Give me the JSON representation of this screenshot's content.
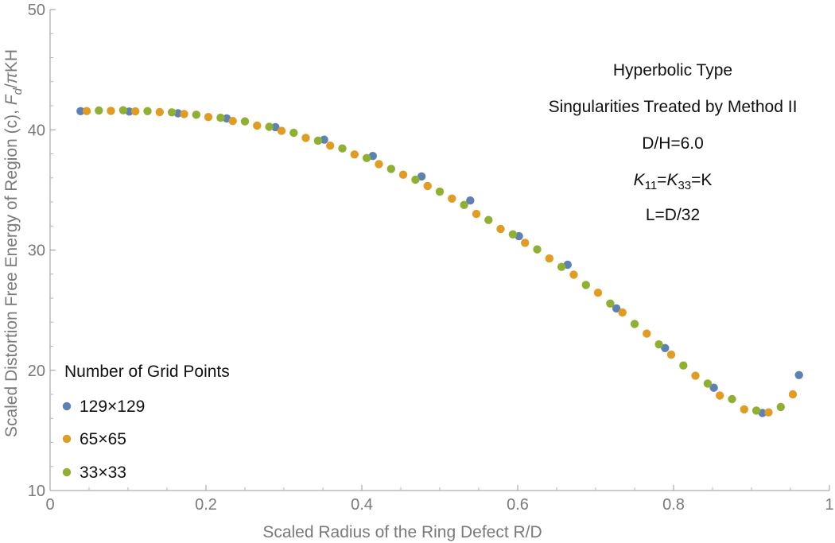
{
  "chart_data": {
    "type": "scatter",
    "title": "",
    "xlabel": "Scaled Radius of the Ring Defect R/D",
    "ylabel_parts": {
      "main": "Scaled Distortion Free Energy of Region (c), ",
      "F": "F",
      "sub_d": "d",
      "slash": "/",
      "pi": "π",
      "tail": "KH"
    },
    "xlim": [
      0,
      1
    ],
    "ylim": [
      10,
      50
    ],
    "xticks": [
      "0",
      "0.2",
      "0.4",
      "0.6",
      "0.8",
      "1"
    ],
    "xtick_values": [
      0,
      0.2,
      0.4,
      0.6,
      0.8,
      1
    ],
    "yticks": [
      "10",
      "20",
      "30",
      "40",
      "50"
    ],
    "ytick_values": [
      10,
      20,
      30,
      40,
      50
    ],
    "annotations": {
      "line1": "Hyperbolic Type",
      "line2": "Singularities Treated by Method II",
      "line3": "D/H=6.0",
      "k_a": "K",
      "k_a_sub": "11",
      "k_eq": "=",
      "k_b": "K",
      "k_b_sub": "33",
      "k_tail": "=K",
      "line5": "L=D/32"
    },
    "legend": {
      "title": "Number of Grid Points",
      "placement": "bottom-left",
      "entries": [
        "129×129",
        "65×65",
        "33×33"
      ]
    },
    "series": [
      {
        "name": "129×129",
        "color": "#5E81B5",
        "x": [
          0.0391,
          0.1016,
          0.1641,
          0.2266,
          0.2891,
          0.3516,
          0.4141,
          0.4766,
          0.5391,
          0.6016,
          0.6641,
          0.7266,
          0.7891,
          0.8516,
          0.9141,
          0.9609
        ],
        "y": [
          41.55,
          41.52,
          41.38,
          40.95,
          40.22,
          39.18,
          37.82,
          36.12,
          34.12,
          31.15,
          28.78,
          25.15,
          21.85,
          18.55,
          16.45,
          19.6
        ]
      },
      {
        "name": "65×65",
        "color": "#E19C24",
        "x": [
          0.0469,
          0.0781,
          0.1094,
          0.1406,
          0.1719,
          0.2031,
          0.2344,
          0.2656,
          0.2969,
          0.3281,
          0.3594,
          0.3906,
          0.4219,
          0.4531,
          0.4844,
          0.5156,
          0.5469,
          0.5781,
          0.6094,
          0.6406,
          0.6719,
          0.7031,
          0.7344,
          0.7656,
          0.7969,
          0.8281,
          0.8594,
          0.8906,
          0.9219,
          0.9531
        ],
        "y": [
          41.56,
          41.58,
          41.53,
          41.47,
          41.31,
          41.06,
          40.73,
          40.35,
          39.91,
          39.33,
          38.68,
          37.95,
          37.15,
          36.27,
          35.33,
          34.28,
          33.0,
          31.75,
          30.6,
          29.3,
          27.95,
          26.45,
          24.8,
          23.05,
          21.3,
          19.55,
          17.9,
          16.75,
          16.5,
          18.0
        ]
      },
      {
        "name": "33×33",
        "color": "#8FB032",
        "x": [
          0.0625,
          0.0938,
          0.125,
          0.1562,
          0.1875,
          0.2188,
          0.25,
          0.2812,
          0.3125,
          0.3438,
          0.375,
          0.4062,
          0.4375,
          0.4688,
          0.5,
          0.5312,
          0.5625,
          0.5938,
          0.625,
          0.6562,
          0.6875,
          0.7188,
          0.75,
          0.7812,
          0.8125,
          0.8438,
          0.875,
          0.9062,
          0.9375
        ],
        "y": [
          41.6,
          41.62,
          41.55,
          41.45,
          41.25,
          41.0,
          40.7,
          40.25,
          39.75,
          39.1,
          38.45,
          37.65,
          36.75,
          35.85,
          34.85,
          33.75,
          32.5,
          31.3,
          30.05,
          28.6,
          27.1,
          25.55,
          23.85,
          22.15,
          20.4,
          18.9,
          17.6,
          16.65,
          16.95
        ]
      }
    ]
  }
}
